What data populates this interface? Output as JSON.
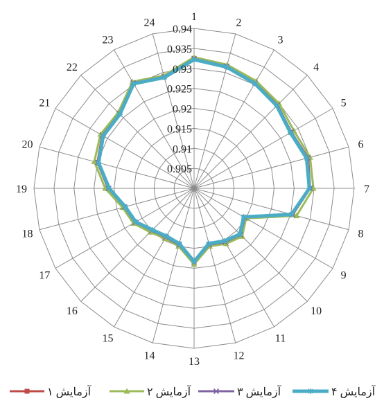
{
  "chart_data": {
    "type": "radar",
    "categories": [
      "1",
      "2",
      "3",
      "4",
      "5",
      "6",
      "7",
      "8",
      "9",
      "10",
      "11",
      "12",
      "13",
      "14",
      "15",
      "16",
      "17",
      "18",
      "19",
      "20",
      "21",
      "22",
      "23",
      "24"
    ],
    "r_axis": {
      "min": 0.9,
      "max": 0.94,
      "step": 0.005,
      "tick_labels": [
        "0.905",
        "0.91",
        "0.915",
        "0.92",
        "0.925",
        "0.93",
        "0.935",
        "0.94"
      ]
    },
    "grid": true,
    "legend_position": "bottom",
    "series": [
      {
        "name": "آزمایش ۱",
        "color": "#be4b48",
        "marker": "square",
        "values": [
          0.9325,
          0.9315,
          0.9305,
          0.9295,
          0.928,
          0.9295,
          0.929,
          0.9255,
          0.9145,
          0.9165,
          0.9155,
          0.9145,
          0.9185,
          0.9145,
          0.914,
          0.915,
          0.917,
          0.918,
          0.9215,
          0.925,
          0.9265,
          0.9265,
          0.9305,
          0.929
        ]
      },
      {
        "name": "آزمایش ۲",
        "color": "#9bbb59",
        "marker": "triangle",
        "values": [
          0.9328,
          0.932,
          0.931,
          0.93,
          0.9288,
          0.93,
          0.9298,
          0.9265,
          0.915,
          0.917,
          0.916,
          0.915,
          0.919,
          0.915,
          0.9145,
          0.9155,
          0.9175,
          0.9185,
          0.9222,
          0.9258,
          0.927,
          0.9268,
          0.9308,
          0.9292
        ]
      },
      {
        "name": "آزمایش ۳",
        "color": "#8064a2",
        "marker": "x",
        "values": [
          0.9324,
          0.9316,
          0.9304,
          0.9294,
          0.9281,
          0.9294,
          0.929,
          0.9254,
          0.9146,
          0.9164,
          0.9155,
          0.9146,
          0.9184,
          0.9146,
          0.9141,
          0.9149,
          0.917,
          0.918,
          0.9214,
          0.9249,
          0.9264,
          0.9264,
          0.9304,
          0.9289
        ]
      },
      {
        "name": "آزمایش ۴",
        "color": "#4bacc6",
        "marker": "star",
        "values": [
          0.9322,
          0.9314,
          0.9303,
          0.9292,
          0.9278,
          0.9291,
          0.9288,
          0.9252,
          0.9143,
          0.9162,
          0.9152,
          0.9143,
          0.9183,
          0.9143,
          0.9138,
          0.9147,
          0.9168,
          0.9178,
          0.9212,
          0.9247,
          0.9262,
          0.9262,
          0.9302,
          0.9287
        ]
      }
    ]
  }
}
